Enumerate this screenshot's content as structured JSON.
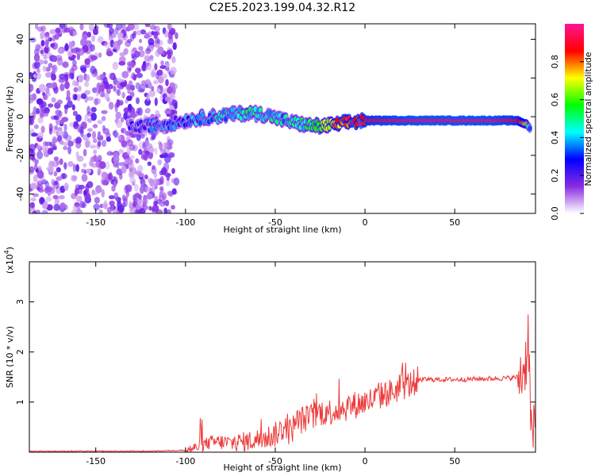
{
  "figure": {
    "title": "C2E5.2023.199.04.32.R12"
  },
  "chart_data": [
    {
      "type": "heatmap",
      "xlabel": "Height of straight line (km)",
      "ylabel": "Frequency (Hz)",
      "xlim": [
        -187,
        95
      ],
      "ylim": [
        -50,
        48
      ],
      "x_ticks": [
        -150,
        -100,
        -50,
        0,
        50
      ],
      "y_ticks": [
        -40,
        -20,
        0,
        20,
        40
      ],
      "grid": false,
      "colorbar": {
        "label": "Normalized spectral amplitude",
        "range": [
          0,
          1
        ],
        "ticks": [
          0.0,
          0.2,
          0.4,
          0.6,
          0.8
        ],
        "colors": [
          "#ffffff",
          "#8a2be2",
          "#0000ff",
          "#00ffff",
          "#00ff00",
          "#ffff00",
          "#ff0000",
          "#ff1493"
        ]
      },
      "ridge": {
        "x": [
          -132,
          -125,
          -115,
          -105,
          -95,
          -85,
          -75,
          -65,
          -55,
          -45,
          -35,
          -25,
          -15,
          -10,
          0,
          10,
          30,
          50,
          70,
          85,
          90,
          92
        ],
        "frequency": [
          -5,
          -5,
          -4,
          -3,
          -1,
          0,
          1,
          2,
          1,
          -2,
          -4,
          -5,
          -4,
          -3,
          -2,
          -2,
          -2,
          -2,
          -2,
          -2,
          -4,
          -6
        ],
        "amplitude": [
          0.2,
          0.25,
          0.3,
          0.3,
          0.35,
          0.4,
          0.4,
          0.45,
          0.45,
          0.4,
          0.45,
          0.6,
          0.8,
          0.85,
          0.9,
          0.92,
          0.95,
          0.95,
          0.95,
          0.9,
          0.7,
          0.3
        ]
      },
      "noise": {
        "x_range": [
          -187,
          -105
        ],
        "frequency_range": [
          -50,
          48
        ],
        "amplitude_range": [
          0.05,
          0.2
        ]
      }
    },
    {
      "type": "line",
      "xlabel": "Height of straight line (km)",
      "ylabel": "SNR (10 * v/v)",
      "multiplier": "(x10",
      "multiplier_exp": "4",
      "multiplier_close": ")",
      "xlim": [
        -187,
        95
      ],
      "ylim": [
        0,
        3.8
      ],
      "x_ticks": [
        -150,
        -100,
        -50,
        0,
        50
      ],
      "y_ticks": [
        1,
        2,
        3
      ],
      "grid": false,
      "series": [
        {
          "color": "#ee3b3b",
          "x": [
            -187,
            -150,
            -120,
            -110,
            -100,
            -95,
            -90,
            -85,
            -80,
            -75,
            -70,
            -65,
            -60,
            -55,
            -50,
            -45,
            -42,
            -38,
            -35,
            -30,
            -25,
            -20,
            -15,
            -10,
            -5,
            0,
            5,
            10,
            15,
            20,
            25,
            30,
            40,
            50,
            60,
            70,
            80,
            85,
            88,
            90,
            91,
            92,
            93,
            95
          ],
          "y": [
            0.02,
            0.02,
            0.02,
            0.03,
            0.04,
            0.08,
            0.15,
            0.2,
            0.2,
            0.18,
            0.2,
            0.22,
            0.25,
            0.3,
            0.35,
            0.5,
            0.4,
            0.6,
            0.65,
            0.7,
            0.8,
            0.8,
            0.85,
            0.9,
            0.95,
            1.0,
            1.05,
            1.15,
            1.2,
            1.3,
            1.35,
            1.45,
            1.45,
            1.45,
            1.46,
            1.47,
            1.48,
            1.5,
            1.6,
            1.9,
            2.5,
            1.0,
            0.3,
            0.4
          ]
        }
      ]
    }
  ]
}
